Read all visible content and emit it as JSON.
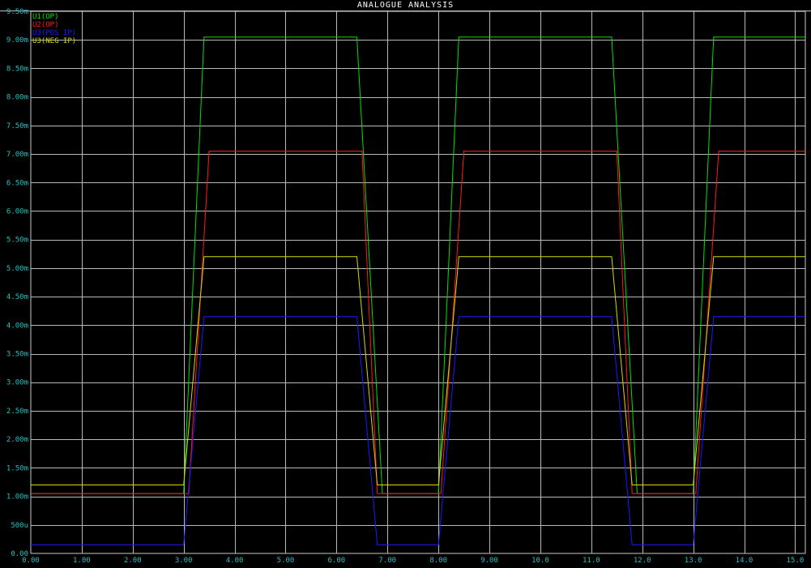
{
  "window": {
    "title": "ANALOGUE ANALYSIS"
  },
  "colors": {
    "background": "#000000",
    "grid": "#b8b8b8",
    "frame": "#c8c8c8",
    "tick_text": "#19c3c3"
  },
  "chart_data": {
    "type": "line",
    "title": "ANALOGUE ANALYSIS",
    "xlabel": "",
    "ylabel": "",
    "grid": true,
    "legend_position": "top-left",
    "xlim": [
      0,
      15.2
    ],
    "ylim": [
      0,
      9.5
    ],
    "x_tick_labels": [
      "0.00",
      "1.00",
      "2.00",
      "3.00",
      "4.00",
      "5.00",
      "6.00",
      "7.00",
      "8.00",
      "9.00",
      "10.0",
      "11.0",
      "12.0",
      "13.0",
      "14.0",
      "15.0"
    ],
    "x_tick_values": [
      0,
      1,
      2,
      3,
      4,
      5,
      6,
      7,
      8,
      9,
      10,
      11,
      12,
      13,
      14,
      15
    ],
    "y_tick_labels": [
      "0.00",
      "500u",
      "1.00m",
      "1.50m",
      "2.00m",
      "2.50m",
      "3.00m",
      "3.50m",
      "4.00m",
      "4.50m",
      "5.00m",
      "5.50m",
      "6.00m",
      "6.50m",
      "7.00m",
      "7.50m",
      "8.00m",
      "8.50m",
      "9.00m",
      "9.50m"
    ],
    "y_tick_values": [
      0,
      0.5,
      1,
      1.5,
      2,
      2.5,
      3,
      3.5,
      4,
      4.5,
      5,
      5.5,
      6,
      6.5,
      7,
      7.5,
      8,
      8.5,
      9,
      9.5
    ],
    "series": [
      {
        "name": "U1(OP)",
        "color": "#00e000",
        "x": [
          0,
          3.0,
          3.4,
          6.4,
          6.9,
          8.0,
          8.4,
          11.4,
          11.9,
          13.0,
          13.4,
          15.2
        ],
        "y": [
          1.05,
          1.05,
          9.05,
          9.05,
          1.05,
          1.05,
          9.05,
          9.05,
          1.05,
          1.05,
          9.05,
          9.05
        ]
      },
      {
        "name": "U2(OP)",
        "color": "#ff1a1a",
        "x": [
          0,
          3.1,
          3.5,
          6.5,
          6.8,
          8.05,
          8.5,
          11.5,
          11.8,
          13.05,
          13.5,
          15.2
        ],
        "y": [
          1.05,
          1.05,
          7.05,
          7.05,
          1.05,
          1.05,
          7.05,
          7.05,
          1.05,
          1.05,
          7.05,
          7.05
        ]
      },
      {
        "name": "U3(POS IP)",
        "color": "#1a1aff",
        "x": [
          0,
          3.0,
          3.4,
          6.4,
          6.8,
          8.0,
          8.4,
          11.4,
          11.8,
          13.0,
          13.4,
          15.2
        ],
        "y": [
          0.15,
          0.15,
          4.15,
          4.15,
          0.15,
          0.15,
          4.15,
          4.15,
          0.15,
          0.15,
          4.15,
          4.15
        ]
      },
      {
        "name": "U3(NEG IP)",
        "color": "#d8d800",
        "x": [
          0,
          3.0,
          3.4,
          6.4,
          6.8,
          8.0,
          8.4,
          11.4,
          11.8,
          13.0,
          13.4,
          15.2
        ],
        "y": [
          1.2,
          1.2,
          5.2,
          5.2,
          1.2,
          1.2,
          5.2,
          5.2,
          1.2,
          1.2,
          5.2,
          5.2
        ]
      }
    ]
  }
}
